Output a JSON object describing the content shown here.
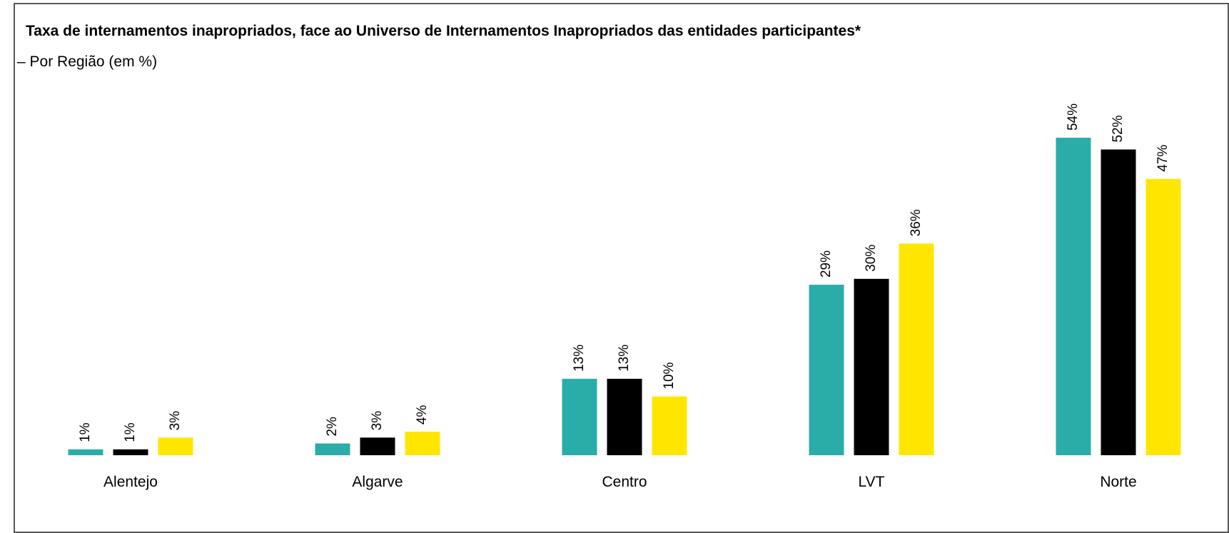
{
  "chart_data": {
    "type": "bar",
    "title": "Taxa de internamentos inapropriados, face ao Universo de Internamentos Inapropriados das entidades participantes*",
    "subtitle": "– Por Região (em %)",
    "categories": [
      "Alentejo",
      "Algarve",
      "Centro",
      "LVT",
      "Norte"
    ],
    "series": [
      {
        "color": "#2aada9",
        "values": [
          1,
          2,
          13,
          29,
          54
        ],
        "value_labels": [
          "1%",
          "2%",
          "13%",
          "29%",
          "54%"
        ]
      },
      {
        "color": "#000000",
        "values": [
          1,
          3,
          13,
          30,
          52
        ],
        "value_labels": [
          "1%",
          "3%",
          "13%",
          "30%",
          "52%"
        ]
      },
      {
        "color": "#ffe600",
        "values": [
          3,
          4,
          10,
          36,
          47
        ],
        "value_labels": [
          "3%",
          "4%",
          "10%",
          "36%",
          "47%"
        ]
      }
    ]
  }
}
